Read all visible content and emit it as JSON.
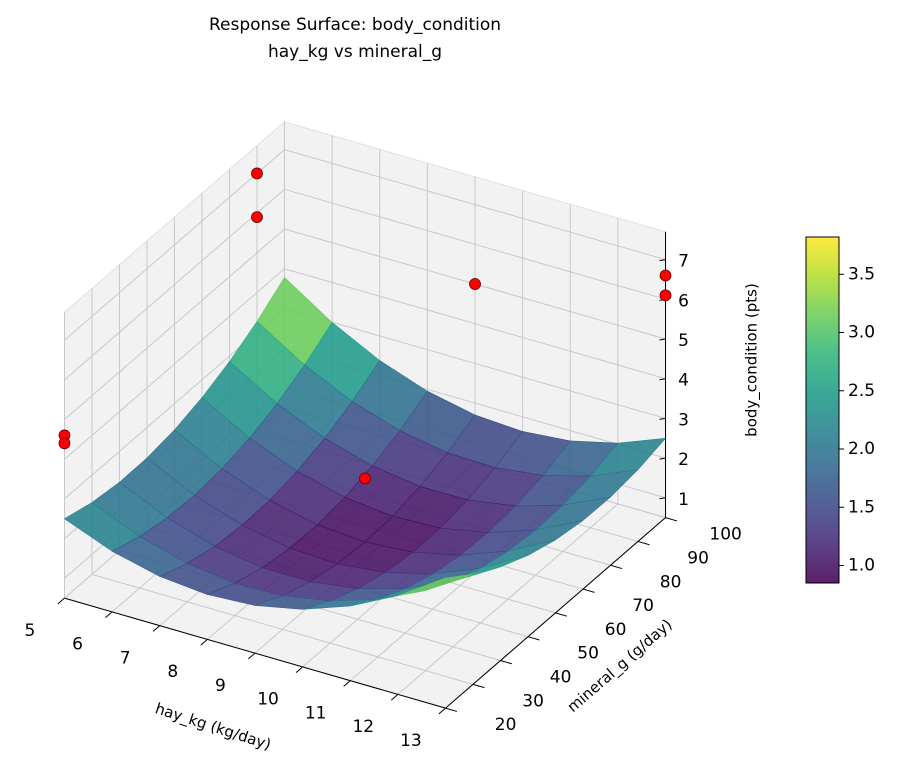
{
  "chart_data": {
    "type": "surface3d",
    "title": "Response Surface: body_condition",
    "subtitle": "hay_kg vs mineral_g",
    "xlabel": "hay_kg (kg/day)",
    "ylabel": "mineral_g (g/day)",
    "zlabel": "body_condition (pts)",
    "xlim": [
      5,
      13
    ],
    "xticks": [
      5,
      6,
      7,
      8,
      9,
      10,
      11,
      12,
      13
    ],
    "ylim": [
      20,
      100
    ],
    "yticks": [
      20,
      30,
      40,
      50,
      60,
      70,
      80,
      90,
      100
    ],
    "zlim": [
      0.5,
      7.7
    ],
    "zticks": [
      1,
      2,
      3,
      4,
      5,
      6,
      7
    ],
    "grid": true,
    "colormap": "viridis",
    "clim": [
      0.85,
      3.82
    ],
    "cticks": [
      {
        "value": 1.0,
        "label": "1.0"
      },
      1.5,
      {
        "value": 2.0,
        "label": "2.0"
      },
      2.5,
      {
        "value": 3.0,
        "label": "3.0"
      },
      3.5
    ],
    "surface_x": [
      5,
      6,
      7,
      8,
      9,
      10,
      11,
      12,
      13
    ],
    "surface_y": [
      20,
      30,
      40,
      50,
      60,
      70,
      80,
      90,
      100
    ],
    "z": [
      [
        2.5,
        2.31,
        2.22,
        2.23,
        2.34,
        2.55,
        2.86,
        3.27,
        3.78
      ],
      [
        2.03,
        1.8,
        1.67,
        1.64,
        1.71,
        1.88,
        2.15,
        2.52,
        2.99
      ],
      [
        1.74,
        1.47,
        1.3,
        1.23,
        1.26,
        1.39,
        1.62,
        1.95,
        2.38
      ],
      [
        1.63,
        1.32,
        1.11,
        1.0,
        0.99,
        1.08,
        1.27,
        1.56,
        1.95
      ],
      [
        1.7,
        1.35,
        1.1,
        0.95,
        0.9,
        0.95,
        1.1,
        1.35,
        1.7
      ],
      [
        1.95,
        1.56,
        1.27,
        1.08,
        0.99,
        1.0,
        1.11,
        1.32,
        1.63
      ],
      [
        2.38,
        1.95,
        1.62,
        1.39,
        1.26,
        1.23,
        1.3,
        1.47,
        1.74
      ],
      [
        2.99,
        2.52,
        2.15,
        1.88,
        1.71,
        1.64,
        1.67,
        1.8,
        2.03
      ],
      [
        3.78,
        3.27,
        2.86,
        2.55,
        2.34,
        2.23,
        2.22,
        2.31,
        2.5
      ]
    ],
    "scatter": {
      "color": "#ff0000",
      "x": [
        5,
        5,
        9,
        13,
        13,
        5,
        5,
        9
      ],
      "y": [
        90,
        90,
        100,
        100,
        100,
        20,
        20,
        60
      ],
      "z": [
        7.0,
        5.9,
        5.0,
        6.6,
        6.1,
        4.6,
        4.4,
        2.5
      ]
    }
  }
}
